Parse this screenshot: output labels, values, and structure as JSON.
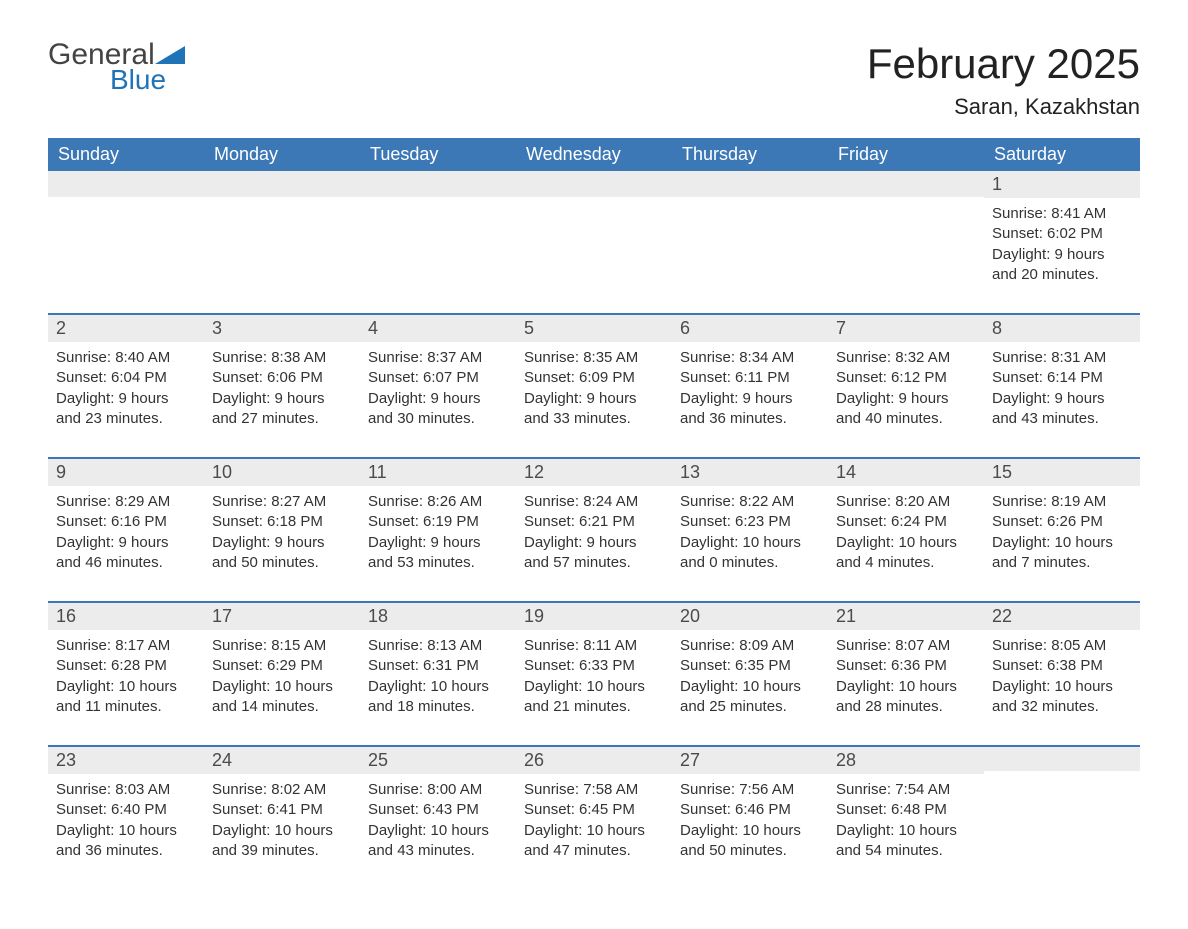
{
  "logo": {
    "word1": "General",
    "word2": "Blue"
  },
  "title": "February 2025",
  "location": "Saran, Kazakhstan",
  "colors": {
    "header_blue": "#3b78b5",
    "row_separator": "#3b78b5",
    "daynum_bg": "#ececec",
    "background": "#ffffff",
    "text": "#262626",
    "logo_blue": "#1f73b7"
  },
  "layout": {
    "type": "calendar-table",
    "columns": 7,
    "rows": 5,
    "title_fontsize": 42,
    "location_fontsize": 22,
    "header_fontsize": 18,
    "daynum_fontsize": 18,
    "body_fontsize": 15
  },
  "day_headers": [
    "Sunday",
    "Monday",
    "Tuesday",
    "Wednesday",
    "Thursday",
    "Friday",
    "Saturday"
  ],
  "weeks": [
    [
      {
        "day": "",
        "sunrise": "",
        "sunset": "",
        "daylight": ""
      },
      {
        "day": "",
        "sunrise": "",
        "sunset": "",
        "daylight": ""
      },
      {
        "day": "",
        "sunrise": "",
        "sunset": "",
        "daylight": ""
      },
      {
        "day": "",
        "sunrise": "",
        "sunset": "",
        "daylight": ""
      },
      {
        "day": "",
        "sunrise": "",
        "sunset": "",
        "daylight": ""
      },
      {
        "day": "",
        "sunrise": "",
        "sunset": "",
        "daylight": ""
      },
      {
        "day": "1",
        "sunrise": "Sunrise: 8:41 AM",
        "sunset": "Sunset: 6:02 PM",
        "daylight": "Daylight: 9 hours and 20 minutes."
      }
    ],
    [
      {
        "day": "2",
        "sunrise": "Sunrise: 8:40 AM",
        "sunset": "Sunset: 6:04 PM",
        "daylight": "Daylight: 9 hours and 23 minutes."
      },
      {
        "day": "3",
        "sunrise": "Sunrise: 8:38 AM",
        "sunset": "Sunset: 6:06 PM",
        "daylight": "Daylight: 9 hours and 27 minutes."
      },
      {
        "day": "4",
        "sunrise": "Sunrise: 8:37 AM",
        "sunset": "Sunset: 6:07 PM",
        "daylight": "Daylight: 9 hours and 30 minutes."
      },
      {
        "day": "5",
        "sunrise": "Sunrise: 8:35 AM",
        "sunset": "Sunset: 6:09 PM",
        "daylight": "Daylight: 9 hours and 33 minutes."
      },
      {
        "day": "6",
        "sunrise": "Sunrise: 8:34 AM",
        "sunset": "Sunset: 6:11 PM",
        "daylight": "Daylight: 9 hours and 36 minutes."
      },
      {
        "day": "7",
        "sunrise": "Sunrise: 8:32 AM",
        "sunset": "Sunset: 6:12 PM",
        "daylight": "Daylight: 9 hours and 40 minutes."
      },
      {
        "day": "8",
        "sunrise": "Sunrise: 8:31 AM",
        "sunset": "Sunset: 6:14 PM",
        "daylight": "Daylight: 9 hours and 43 minutes."
      }
    ],
    [
      {
        "day": "9",
        "sunrise": "Sunrise: 8:29 AM",
        "sunset": "Sunset: 6:16 PM",
        "daylight": "Daylight: 9 hours and 46 minutes."
      },
      {
        "day": "10",
        "sunrise": "Sunrise: 8:27 AM",
        "sunset": "Sunset: 6:18 PM",
        "daylight": "Daylight: 9 hours and 50 minutes."
      },
      {
        "day": "11",
        "sunrise": "Sunrise: 8:26 AM",
        "sunset": "Sunset: 6:19 PM",
        "daylight": "Daylight: 9 hours and 53 minutes."
      },
      {
        "day": "12",
        "sunrise": "Sunrise: 8:24 AM",
        "sunset": "Sunset: 6:21 PM",
        "daylight": "Daylight: 9 hours and 57 minutes."
      },
      {
        "day": "13",
        "sunrise": "Sunrise: 8:22 AM",
        "sunset": "Sunset: 6:23 PM",
        "daylight": "Daylight: 10 hours and 0 minutes."
      },
      {
        "day": "14",
        "sunrise": "Sunrise: 8:20 AM",
        "sunset": "Sunset: 6:24 PM",
        "daylight": "Daylight: 10 hours and 4 minutes."
      },
      {
        "day": "15",
        "sunrise": "Sunrise: 8:19 AM",
        "sunset": "Sunset: 6:26 PM",
        "daylight": "Daylight: 10 hours and 7 minutes."
      }
    ],
    [
      {
        "day": "16",
        "sunrise": "Sunrise: 8:17 AM",
        "sunset": "Sunset: 6:28 PM",
        "daylight": "Daylight: 10 hours and 11 minutes."
      },
      {
        "day": "17",
        "sunrise": "Sunrise: 8:15 AM",
        "sunset": "Sunset: 6:29 PM",
        "daylight": "Daylight: 10 hours and 14 minutes."
      },
      {
        "day": "18",
        "sunrise": "Sunrise: 8:13 AM",
        "sunset": "Sunset: 6:31 PM",
        "daylight": "Daylight: 10 hours and 18 minutes."
      },
      {
        "day": "19",
        "sunrise": "Sunrise: 8:11 AM",
        "sunset": "Sunset: 6:33 PM",
        "daylight": "Daylight: 10 hours and 21 minutes."
      },
      {
        "day": "20",
        "sunrise": "Sunrise: 8:09 AM",
        "sunset": "Sunset: 6:35 PM",
        "daylight": "Daylight: 10 hours and 25 minutes."
      },
      {
        "day": "21",
        "sunrise": "Sunrise: 8:07 AM",
        "sunset": "Sunset: 6:36 PM",
        "daylight": "Daylight: 10 hours and 28 minutes."
      },
      {
        "day": "22",
        "sunrise": "Sunrise: 8:05 AM",
        "sunset": "Sunset: 6:38 PM",
        "daylight": "Daylight: 10 hours and 32 minutes."
      }
    ],
    [
      {
        "day": "23",
        "sunrise": "Sunrise: 8:03 AM",
        "sunset": "Sunset: 6:40 PM",
        "daylight": "Daylight: 10 hours and 36 minutes."
      },
      {
        "day": "24",
        "sunrise": "Sunrise: 8:02 AM",
        "sunset": "Sunset: 6:41 PM",
        "daylight": "Daylight: 10 hours and 39 minutes."
      },
      {
        "day": "25",
        "sunrise": "Sunrise: 8:00 AM",
        "sunset": "Sunset: 6:43 PM",
        "daylight": "Daylight: 10 hours and 43 minutes."
      },
      {
        "day": "26",
        "sunrise": "Sunrise: 7:58 AM",
        "sunset": "Sunset: 6:45 PM",
        "daylight": "Daylight: 10 hours and 47 minutes."
      },
      {
        "day": "27",
        "sunrise": "Sunrise: 7:56 AM",
        "sunset": "Sunset: 6:46 PM",
        "daylight": "Daylight: 10 hours and 50 minutes."
      },
      {
        "day": "28",
        "sunrise": "Sunrise: 7:54 AM",
        "sunset": "Sunset: 6:48 PM",
        "daylight": "Daylight: 10 hours and 54 minutes."
      },
      {
        "day": "",
        "sunrise": "",
        "sunset": "",
        "daylight": ""
      }
    ]
  ]
}
